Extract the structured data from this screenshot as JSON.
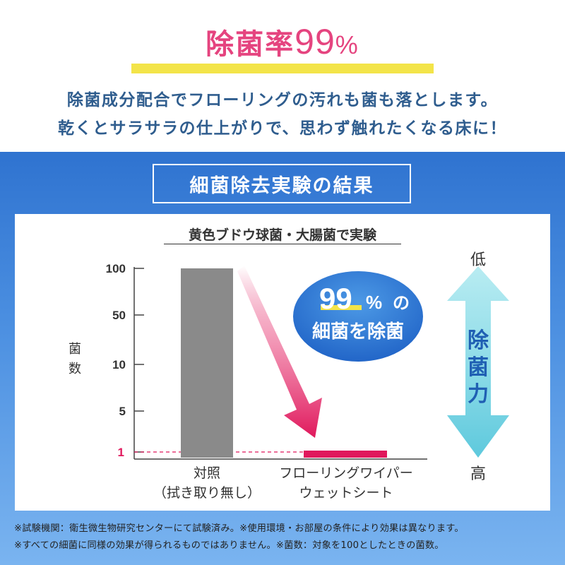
{
  "header": {
    "headline_prefix": "除菌率",
    "headline_number": "99",
    "headline_unit": "%",
    "sub_line1": "除菌成分配合でフローリングの汚れも菌も落とします。",
    "sub_line2": "乾くとサラサラの仕上がりで、思わず触れたくなる床に！"
  },
  "panel": {
    "title": "細菌除去実験の結果"
  },
  "chart_data": {
    "type": "bar",
    "title": "黄色ブドウ球菌・大腸菌で実験",
    "ylabel": "菌数",
    "yscale": "log",
    "yticks": [
      "100",
      "50",
      "10",
      "5",
      "1"
    ],
    "ylim": [
      1,
      100
    ],
    "categories": [
      [
        "対照",
        "（拭き取り無し）"
      ],
      [
        "フローリングワイパー",
        "ウェットシート"
      ]
    ],
    "values": [
      100,
      1
    ],
    "bar_colors": [
      "#8a8a8a",
      "#e0185c"
    ],
    "reference_line_value": 1,
    "reference_line_color": "#e0185c",
    "callout": {
      "number": "99",
      "unit": "%",
      "suffix": "の",
      "line2": "細菌を除菌"
    },
    "side_scale": {
      "top": "低",
      "label": "除菌力",
      "bottom": "高"
    },
    "grid": false
  },
  "notes": {
    "line1": "※試験機関：衛生微生物研究センターにて試験済み。※使用環境・お部屋の条件により効果は異なります。",
    "line2": "※すべての細菌に同様の効果が得られるものではありません。※菌数：対象を100としたときの菌数。"
  }
}
